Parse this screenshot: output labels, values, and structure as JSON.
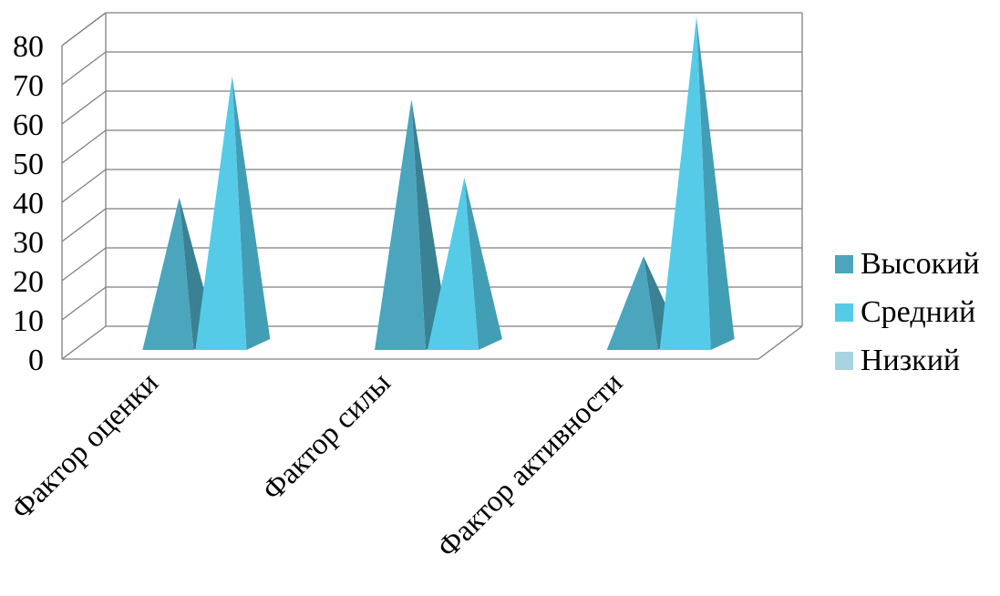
{
  "chart_data": {
    "type": "bar",
    "subtype": "3d-pyramid",
    "categories": [
      "Фактор оценки",
      "Фактор силы",
      "Фактор активности"
    ],
    "series": [
      {
        "name": "Высокий",
        "values": [
          36,
          61,
          21
        ],
        "color": "#4aa5bd"
      },
      {
        "name": "Средний",
        "values": [
          67,
          41,
          82
        ],
        "color": "#55cbe8"
      },
      {
        "name": "Низкий",
        "values": [
          0,
          0,
          0
        ],
        "color": "#a8d3e0"
      }
    ],
    "y_ticks": [
      "0",
      "10",
      "20",
      "30",
      "40",
      "50",
      "60",
      "70",
      "80"
    ],
    "ylim": [
      0,
      80
    ],
    "grid": true,
    "legend_position": "right"
  }
}
